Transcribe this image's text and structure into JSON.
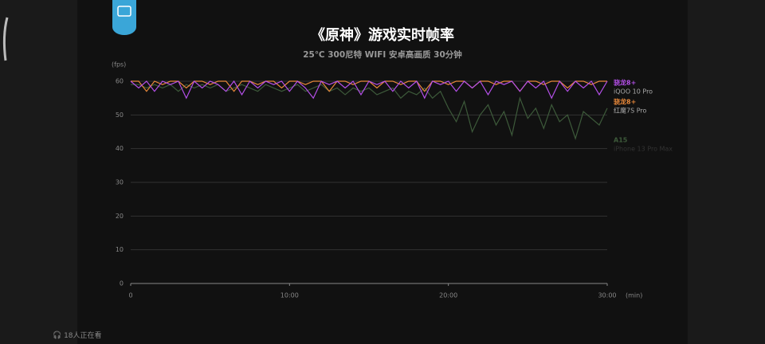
{
  "chart_data": {
    "type": "line",
    "title": "《原神》游戏实时帧率",
    "subtitle": "25℃ 300尼特 WIFI 安卓高画质 30分钟",
    "y_label": "(fps)",
    "x_label": "(min)",
    "xlim": [
      0,
      30
    ],
    "xticks": [
      0,
      {
        "value": 10,
        "label": "10:00"
      },
      {
        "value": 20,
        "label": "20:00"
      },
      {
        "value": 30,
        "label": "30:00"
      }
    ],
    "ylim": [
      0,
      60
    ],
    "yticks": [
      0,
      10,
      20,
      30,
      40,
      50,
      60
    ],
    "grid": true,
    "x": [
      0,
      0.5,
      1,
      1.5,
      2,
      2.5,
      3,
      3.5,
      4,
      4.5,
      5,
      5.5,
      6,
      6.5,
      7,
      7.5,
      8,
      8.5,
      9,
      9.5,
      10,
      10.5,
      11,
      11.5,
      12,
      12.5,
      13,
      13.5,
      14,
      14.5,
      15,
      15.5,
      16,
      16.5,
      17,
      17.5,
      18,
      18.5,
      19,
      19.5,
      20,
      20.5,
      21,
      21.5,
      22,
      22.5,
      23,
      23.5,
      24,
      24.5,
      25,
      25.5,
      26,
      26.5,
      27,
      27.5,
      28,
      28.5,
      29,
      29.5,
      30
    ],
    "series": [
      {
        "name": "骁龙8+",
        "device": "iQOO 10 Pro",
        "color": "#b44fe8",
        "values": [
          60,
          58,
          60,
          57,
          60,
          59,
          60,
          55,
          60,
          58,
          60,
          59,
          57,
          60,
          56,
          60,
          58,
          60,
          59,
          60,
          57,
          60,
          58,
          55,
          60,
          59,
          60,
          58,
          60,
          56,
          60,
          59,
          60,
          57,
          60,
          58,
          60,
          55,
          60,
          59,
          60,
          57,
          60,
          58,
          60,
          56,
          60,
          59,
          60,
          57,
          60,
          58,
          60,
          55,
          60,
          57,
          60,
          58,
          60,
          56,
          60
        ]
      },
      {
        "name": "骁龙8+",
        "device": "红魔7S Pro",
        "color": "#e8883a",
        "values": [
          60,
          60,
          57,
          60,
          59,
          60,
          60,
          58,
          60,
          60,
          59,
          60,
          60,
          57,
          60,
          60,
          59,
          60,
          60,
          58,
          60,
          60,
          59,
          60,
          60,
          57,
          60,
          60,
          59,
          60,
          60,
          58,
          60,
          60,
          59,
          60,
          60,
          57,
          60,
          60,
          59,
          60,
          60,
          58,
          60,
          60,
          59,
          60,
          60,
          57,
          60,
          60,
          59,
          60,
          60,
          58,
          60,
          60,
          59,
          60,
          60
        ]
      },
      {
        "name": "A15",
        "device": "iPhone 13 Pro Max",
        "color": "#3d5a3a",
        "values": [
          59,
          59,
          58,
          59,
          58,
          59,
          57,
          59,
          58,
          59,
          58,
          59,
          57,
          58,
          59,
          58,
          57,
          59,
          58,
          57,
          58,
          59,
          57,
          58,
          59,
          57,
          58,
          56,
          58,
          57,
          58,
          56,
          57,
          58,
          55,
          57,
          56,
          58,
          55,
          57,
          52,
          48,
          54,
          45,
          50,
          53,
          47,
          51,
          44,
          55,
          49,
          52,
          46,
          53,
          48,
          50,
          43,
          51,
          49,
          47,
          52
        ]
      }
    ]
  },
  "overlay": {
    "viewers": "18人正在看"
  }
}
